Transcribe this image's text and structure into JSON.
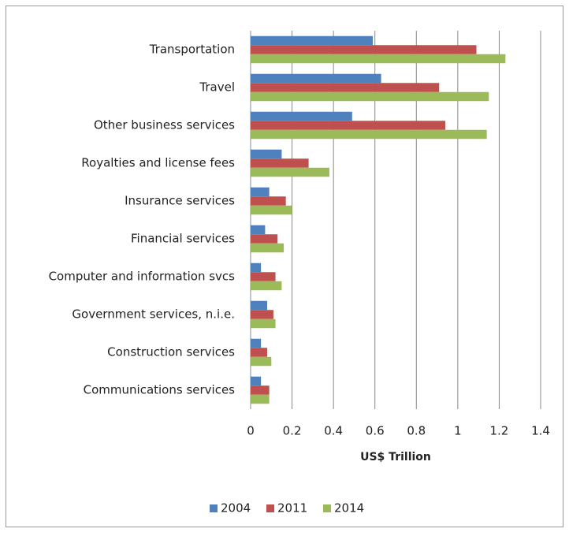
{
  "chart_data": {
    "type": "hbar",
    "categories": [
      "Transportation",
      "Travel",
      "Other business services",
      "Royalties and license fees",
      "Insurance services",
      "Financial services",
      "Computer and information svcs",
      "Government services, n.i.e.",
      "Construction services",
      "Communications services"
    ],
    "series": [
      {
        "name": "2004",
        "color": "#4f81bd",
        "values": [
          0.59,
          0.63,
          0.49,
          0.15,
          0.09,
          0.07,
          0.05,
          0.08,
          0.05,
          0.05
        ]
      },
      {
        "name": "2011",
        "color": "#c0504d",
        "values": [
          1.09,
          0.91,
          0.94,
          0.28,
          0.17,
          0.13,
          0.12,
          0.11,
          0.08,
          0.09
        ]
      },
      {
        "name": "2014",
        "color": "#9bbb59",
        "values": [
          1.23,
          1.15,
          1.14,
          0.38,
          0.2,
          0.16,
          0.15,
          0.12,
          0.1,
          0.09
        ]
      }
    ],
    "x_label": "US$ Trillion",
    "xlim": [
      0,
      1.4
    ],
    "xticks": [
      0,
      0.2,
      0.4,
      0.6,
      0.8,
      1,
      1.2,
      1.4
    ],
    "grid": true,
    "legend": "bottom"
  }
}
